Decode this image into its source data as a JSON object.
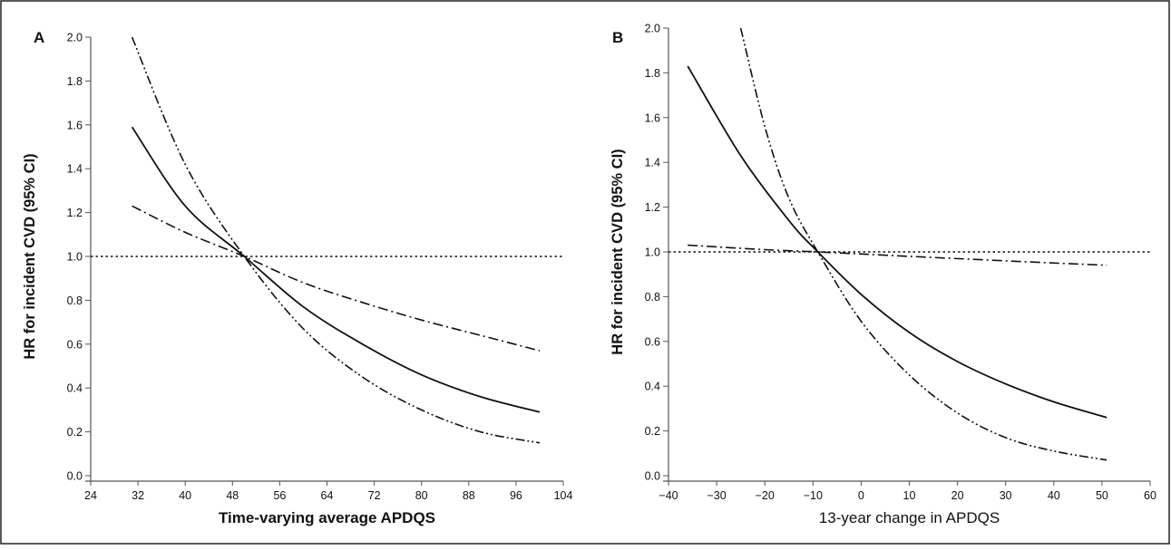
{
  "chart_data": [
    {
      "type": "line",
      "panel": "A",
      "title": "",
      "xlabel": "Time-varying average APDQS",
      "ylabel": "HR for incident CVD (95% CI)",
      "xlim": [
        24,
        104
      ],
      "ylim": [
        0.0,
        2.0
      ],
      "xticks": [
        24,
        32,
        40,
        48,
        56,
        64,
        72,
        80,
        88,
        96,
        104
      ],
      "yticks": [
        "0.0",
        "0.2",
        "0.4",
        "0.6",
        "0.8",
        "1.0",
        "1.2",
        "1.4",
        "1.6",
        "1.8",
        "2.0"
      ],
      "xtick_labels": [
        "24",
        "32",
        "40",
        "48",
        "56",
        "64",
        "72",
        "80",
        "88",
        "96",
        "104"
      ],
      "grid": false,
      "series": [
        {
          "role": "estimate",
          "style": "solid",
          "x": [
            31,
            40,
            50,
            60,
            70,
            80,
            90,
            100
          ],
          "y": [
            1.59,
            1.23,
            1.0,
            0.77,
            0.6,
            0.46,
            0.36,
            0.29
          ]
        },
        {
          "role": "upper-ci",
          "style": "dash-dot",
          "x": [
            31,
            40,
            50,
            60,
            70,
            80,
            90,
            100
          ],
          "y": [
            1.23,
            1.11,
            1.0,
            0.88,
            0.79,
            0.71,
            0.64,
            0.57
          ]
        },
        {
          "role": "lower-ci",
          "style": "dash-dot-dot",
          "x": [
            31,
            40,
            50,
            60,
            70,
            80,
            90,
            100
          ],
          "y": [
            2.0,
            1.42,
            1.0,
            0.67,
            0.45,
            0.3,
            0.2,
            0.15
          ]
        },
        {
          "role": "reference",
          "style": "dotted",
          "x": [
            24,
            104
          ],
          "y": [
            1.0,
            1.0
          ]
        }
      ]
    },
    {
      "type": "line",
      "panel": "B",
      "title": "",
      "xlabel": "13-year change in APDQS",
      "ylabel": "HR for incident CVD (95% CI)",
      "xlim": [
        -40,
        60
      ],
      "ylim": [
        0.0,
        2.0
      ],
      "xticks": [
        -40,
        -30,
        -20,
        -10,
        0,
        10,
        20,
        30,
        40,
        50,
        60
      ],
      "xtick_labels": [
        "−40",
        "−30",
        "−20",
        "−10",
        "0",
        "10",
        "20",
        "30",
        "40",
        "50",
        "60"
      ],
      "yticks": [
        "0.0",
        "0.2",
        "0.4",
        "0.6",
        "0.8",
        "1.0",
        "1.2",
        "1.4",
        "1.6",
        "1.8",
        "2.0"
      ],
      "grid": false,
      "series": [
        {
          "role": "estimate",
          "style": "solid",
          "x": [
            -36,
            -25,
            -15,
            -9,
            0,
            10,
            20,
            30,
            40,
            51
          ],
          "y": [
            1.83,
            1.43,
            1.14,
            1.0,
            0.81,
            0.64,
            0.51,
            0.41,
            0.33,
            0.26
          ]
        },
        {
          "role": "upper-ci",
          "style": "dash-dot",
          "x": [
            -36,
            -20,
            -9,
            10,
            30,
            51
          ],
          "y": [
            1.03,
            1.01,
            1.0,
            0.98,
            0.96,
            0.94
          ]
        },
        {
          "role": "lower-ci",
          "style": "dash-dot-dot",
          "x": [
            -25,
            -20,
            -15,
            -9,
            0,
            10,
            20,
            30,
            40,
            51
          ],
          "y": [
            2.0,
            1.56,
            1.24,
            1.0,
            0.69,
            0.45,
            0.28,
            0.17,
            0.11,
            0.07
          ]
        },
        {
          "role": "reference",
          "style": "dotted",
          "x": [
            -40,
            60
          ],
          "y": [
            1.0,
            1.0
          ]
        }
      ]
    }
  ]
}
